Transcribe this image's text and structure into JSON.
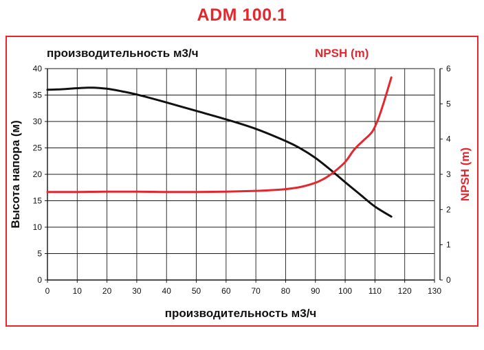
{
  "title": "ADM 100.1",
  "chart_data": {
    "type": "line",
    "title": "ADM 100.1",
    "top_left_label": "производительность м3/ч",
    "top_right_label": "NPSH (m)",
    "xlabel": "производительность м3/ч",
    "ylabel": "Высота напора (м)",
    "y2label": "NPSH (m)",
    "xlim": [
      0,
      130
    ],
    "ylim": [
      0,
      40
    ],
    "y2lim": [
      0,
      6
    ],
    "x_ticks": [
      "0",
      "10",
      "20",
      "30",
      "40",
      "50",
      "60",
      "70",
      "80",
      "90",
      "100",
      "110",
      "120",
      "130"
    ],
    "y_ticks": [
      "0",
      "5",
      "10",
      "15",
      "20",
      "25",
      "30",
      "35",
      "40"
    ],
    "y2_ticks": [
      "0",
      "1",
      "2",
      "3",
      "4",
      "5",
      "6"
    ],
    "grid": true,
    "series": [
      {
        "name": "Высота напора (м)",
        "axis": "left",
        "color": "#111111",
        "x": [
          0,
          5,
          10,
          15,
          20,
          25,
          30,
          40,
          50,
          60,
          70,
          80,
          85,
          90,
          95,
          100,
          105,
          110,
          115.5
        ],
        "y": [
          36.0,
          36.1,
          36.3,
          36.4,
          36.2,
          35.7,
          35.1,
          33.6,
          32.0,
          30.4,
          28.6,
          26.3,
          24.9,
          23.1,
          20.9,
          18.5,
          16.2,
          13.9,
          12.0
        ]
      },
      {
        "name": "NPSH (m)",
        "axis": "right",
        "color": "#e4262d",
        "x": [
          0,
          10,
          20,
          30,
          40,
          50,
          60,
          70,
          75,
          80,
          85,
          90,
          93,
          96,
          100,
          103,
          106,
          109,
          111,
          113,
          115.5
        ],
        "y": [
          2.5,
          2.5,
          2.51,
          2.51,
          2.5,
          2.5,
          2.51,
          2.53,
          2.55,
          2.58,
          2.64,
          2.76,
          2.88,
          3.05,
          3.35,
          3.7,
          3.95,
          4.2,
          4.55,
          5.05,
          5.75
        ]
      }
    ]
  }
}
